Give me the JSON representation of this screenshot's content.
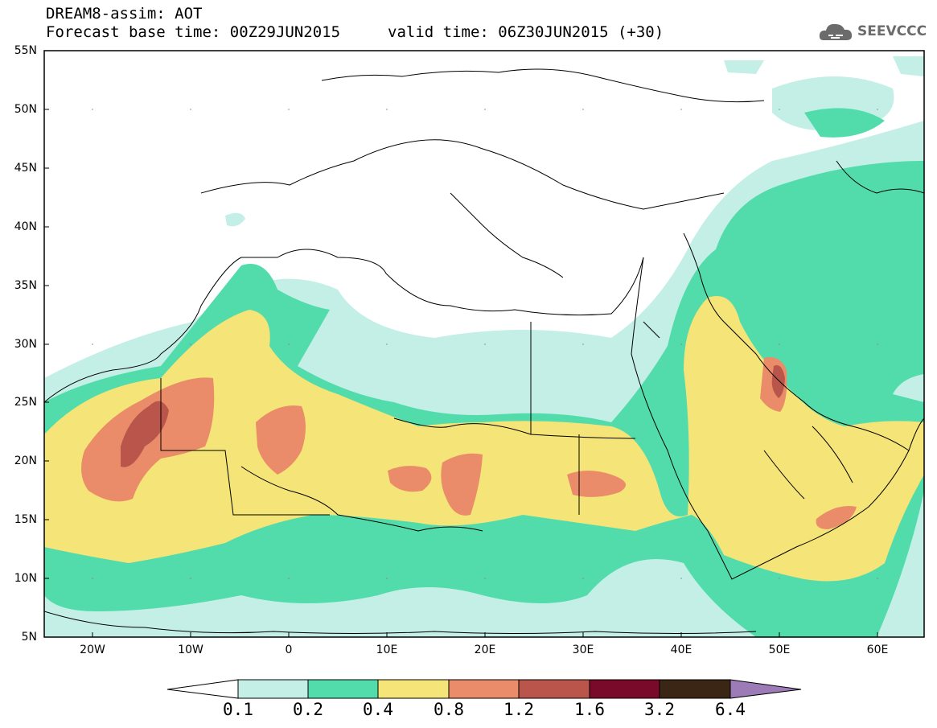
{
  "header": {
    "title": "DREAM8-assim: AOT",
    "base_time": "Forecast base time: 00Z29JUN2015",
    "valid_time": "valid time: 06Z30JUN2015 (+30)"
  },
  "logo": {
    "text": "SEEVCCC",
    "icon": "cloud-icon"
  },
  "map": {
    "lat_labels": [
      "55N",
      "50N",
      "45N",
      "40N",
      "35N",
      "30N",
      "25N",
      "20N",
      "15N",
      "10N",
      "5N"
    ],
    "lon_labels": [
      "20W",
      "10W",
      "0",
      "10E",
      "20E",
      "30E",
      "40E",
      "50E",
      "60E"
    ],
    "extent": {
      "lon_min": -25,
      "lon_max": 65,
      "lat_min": 5,
      "lat_max": 55
    }
  },
  "colorbar": {
    "labels": [
      "0.1",
      "0.2",
      "0.4",
      "0.8",
      "1.2",
      "1.6",
      "3.2",
      "6.4"
    ],
    "colors": [
      "#ffffff",
      "#c3efe7",
      "#53dcab",
      "#f5e477",
      "#ea8c69",
      "#b9554a",
      "#7a0a2a",
      "#3b2615",
      "#9d7bb7"
    ]
  },
  "levels": {
    "0.1": "#c3efe7",
    "0.2": "#53dcab",
    "0.4": "#f5e477",
    "0.8": "#ea8c69",
    "1.2": "#b9554a"
  }
}
